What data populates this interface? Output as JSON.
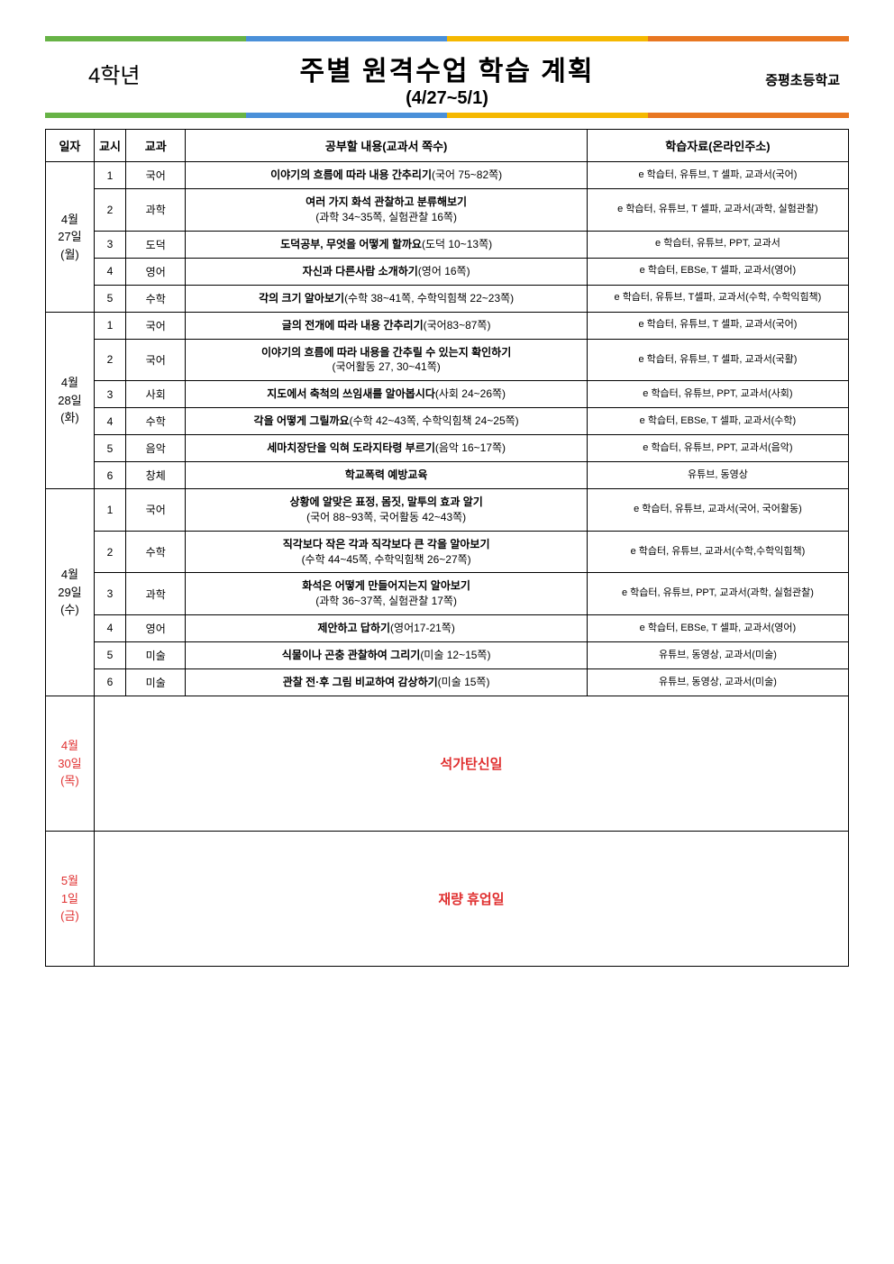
{
  "header": {
    "grade": "4학년",
    "title": "주별 원격수업 학습 계획",
    "date_range": "(4/27~5/1)",
    "school": "증평초등학교",
    "bar_colors": [
      "#67b346",
      "#4a90d9",
      "#f5b800",
      "#e87722"
    ]
  },
  "columns": {
    "date": "일자",
    "period": "교시",
    "subject": "교과",
    "content": "공부할 내용(교과서 쪽수)",
    "materials": "학습자료(온라인주소)"
  },
  "days": [
    {
      "date_lines": [
        "4월",
        "27일",
        "(월)"
      ],
      "holiday": false,
      "rows": [
        {
          "period": "1",
          "subject": "국어",
          "content_bold": "이야기의 흐름에 따라 내용 간추리기",
          "content_detail": "(국어 75~82쪽)",
          "detail_inline": true,
          "materials": "e 학습터, 유튜브, T 셀파, 교과서(국어)"
        },
        {
          "period": "2",
          "subject": "과학",
          "content_bold": "여러 가지 화석 관찰하고 분류해보기",
          "content_detail": "(과학 34~35쪽, 실험관찰 16쪽)",
          "detail_inline": false,
          "materials": "e 학습터, 유튜브, T 셀파, 교과서(과학, 실험관찰)"
        },
        {
          "period": "3",
          "subject": "도덕",
          "content_bold": "도덕공부, 무엇을 어떻게 할까요",
          "content_detail": "(도덕 10~13쪽)",
          "detail_inline": true,
          "materials": "e 학습터, 유튜브, PPT, 교과서"
        },
        {
          "period": "4",
          "subject": "영어",
          "content_bold": "자신과 다른사람 소개하기",
          "content_detail": "(영어 16쪽)",
          "detail_inline": true,
          "materials": "e 학습터, EBSe, T 셀파, 교과서(영어)"
        },
        {
          "period": "5",
          "subject": "수학",
          "content_bold": "각의 크기 알아보기",
          "content_detail": "(수학 38~41쪽, 수학익힘책 22~23쪽)",
          "detail_inline": true,
          "materials": "e 학습터, 유튜브, T셀파, 교과서(수학, 수학익힘책)"
        }
      ]
    },
    {
      "date_lines": [
        "4월",
        "28일",
        "(화)"
      ],
      "holiday": false,
      "rows": [
        {
          "period": "1",
          "subject": "국어",
          "content_bold": "글의 전개에 따라 내용 간추리기",
          "content_detail": "(국어83~87쪽)",
          "detail_inline": true,
          "materials": "e 학습터, 유튜브, T 셀파, 교과서(국어)"
        },
        {
          "period": "2",
          "subject": "국어",
          "content_bold": "이야기의 흐름에 따라 내용을 간추릴 수 있는지 확인하기",
          "content_detail": "(국어활동 27, 30~41쪽)",
          "detail_inline": false,
          "materials": "e 학습터, 유튜브, T 셀파, 교과서(국활)"
        },
        {
          "period": "3",
          "subject": "사회",
          "content_bold": "지도에서 축척의 쓰임새를 알아봅시다",
          "content_detail": "(사회 24~26쪽)",
          "detail_inline": true,
          "materials": "e 학습터, 유튜브, PPT, 교과서(사회)"
        },
        {
          "period": "4",
          "subject": "수학",
          "content_bold": "각을 어떻게 그릴까요",
          "content_detail": "(수학 42~43쪽, 수학익힘책 24~25쪽)",
          "detail_inline": true,
          "materials": "e 학습터, EBSe, T 셀파, 교과서(수학)"
        },
        {
          "period": "5",
          "subject": "음악",
          "content_bold": "세마치장단을 익혀 도라지타령 부르기",
          "content_detail": "(음악 16~17쪽)",
          "detail_inline": true,
          "materials": "e 학습터, 유튜브, PPT, 교과서(음악)"
        },
        {
          "period": "6",
          "subject": "창체",
          "content_bold": "학교폭력 예방교육",
          "content_detail": "",
          "detail_inline": true,
          "materials": "유튜브, 동영상"
        }
      ]
    },
    {
      "date_lines": [
        "4월",
        "29일",
        "(수)"
      ],
      "holiday": false,
      "rows": [
        {
          "period": "1",
          "subject": "국어",
          "content_bold": "상황에 알맞은 표정, 몸짓, 말투의 효과 알기",
          "content_detail": "(국어 88~93쪽, 국어활동 42~43쪽)",
          "detail_inline": false,
          "materials": "e 학습터, 유튜브, 교과서(국어, 국어활동)"
        },
        {
          "period": "2",
          "subject": "수학",
          "content_bold": "직각보다 작은 각과 직각보다 큰 각을 알아보기",
          "content_detail": "(수학 44~45쪽, 수학익힘책 26~27쪽)",
          "detail_inline": false,
          "materials": "e 학습터, 유튜브, 교과서(수학,수학익힘책)"
        },
        {
          "period": "3",
          "subject": "과학",
          "content_bold": "화석은 어떻게 만들어지는지 알아보기",
          "content_detail": "(과학 36~37쪽, 실험관찰 17쪽)",
          "detail_inline": false,
          "materials": "e 학습터, 유튜브, PPT, 교과서(과학, 실험관찰)"
        },
        {
          "period": "4",
          "subject": "영어",
          "content_bold": "제안하고 답하기",
          "content_detail": "(영어17-21쪽)",
          "detail_inline": true,
          "materials": "e 학습터, EBSe, T 셀파, 교과서(영어)"
        },
        {
          "period": "5",
          "subject": "미술",
          "content_bold": "식물이나 곤충 관찰하여 그리기",
          "content_detail": "(미술 12~15쪽)",
          "detail_inline": true,
          "materials": "유튜브, 동영상, 교과서(미술)"
        },
        {
          "period": "6",
          "subject": "미술",
          "content_bold": "관찰 전·후 그림 비교하여 감상하기",
          "content_detail": "(미술 15쪽)",
          "detail_inline": true,
          "materials": "유튜브, 동영상, 교과서(미술)"
        }
      ]
    },
    {
      "date_lines": [
        "4월",
        "30일",
        "(목)"
      ],
      "holiday": true,
      "holiday_text": "석가탄신일"
    },
    {
      "date_lines": [
        "5월",
        "1일",
        "(금)"
      ],
      "holiday": true,
      "holiday_text": "재량 휴업일"
    }
  ]
}
